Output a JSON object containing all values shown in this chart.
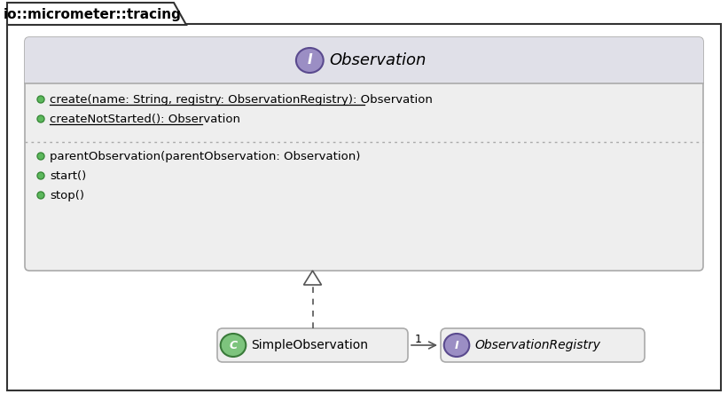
{
  "bg_color": "#ffffff",
  "inner_box_bg": "#eeeeee",
  "header_bg": "#e0e0e8",
  "package_label": "io::micrometer::tracing",
  "observation_title": "Observation",
  "static_methods": [
    "create(name: String, registry: ObservationRegistry): Observation",
    "createNotStarted(): Observation"
  ],
  "instance_methods": [
    "parentObservation(parentObservation: Observation)",
    "start()",
    "stop()"
  ],
  "simple_obs_label": "SimpleObservation",
  "obs_registry_label": "ObservationRegistry",
  "interface_circle_color": "#9b8ec4",
  "interface_circle_border": "#5a4a8e",
  "class_circle_color": "#7dc47d",
  "class_circle_border": "#3a7a3a",
  "dot_color": "#5cb85c",
  "dot_border": "#3a8a3a",
  "arrow_color": "#555555",
  "text_color": "#000000",
  "border_color": "#aaaaaa",
  "dark_border": "#555555",
  "pkg_border": "#333333"
}
